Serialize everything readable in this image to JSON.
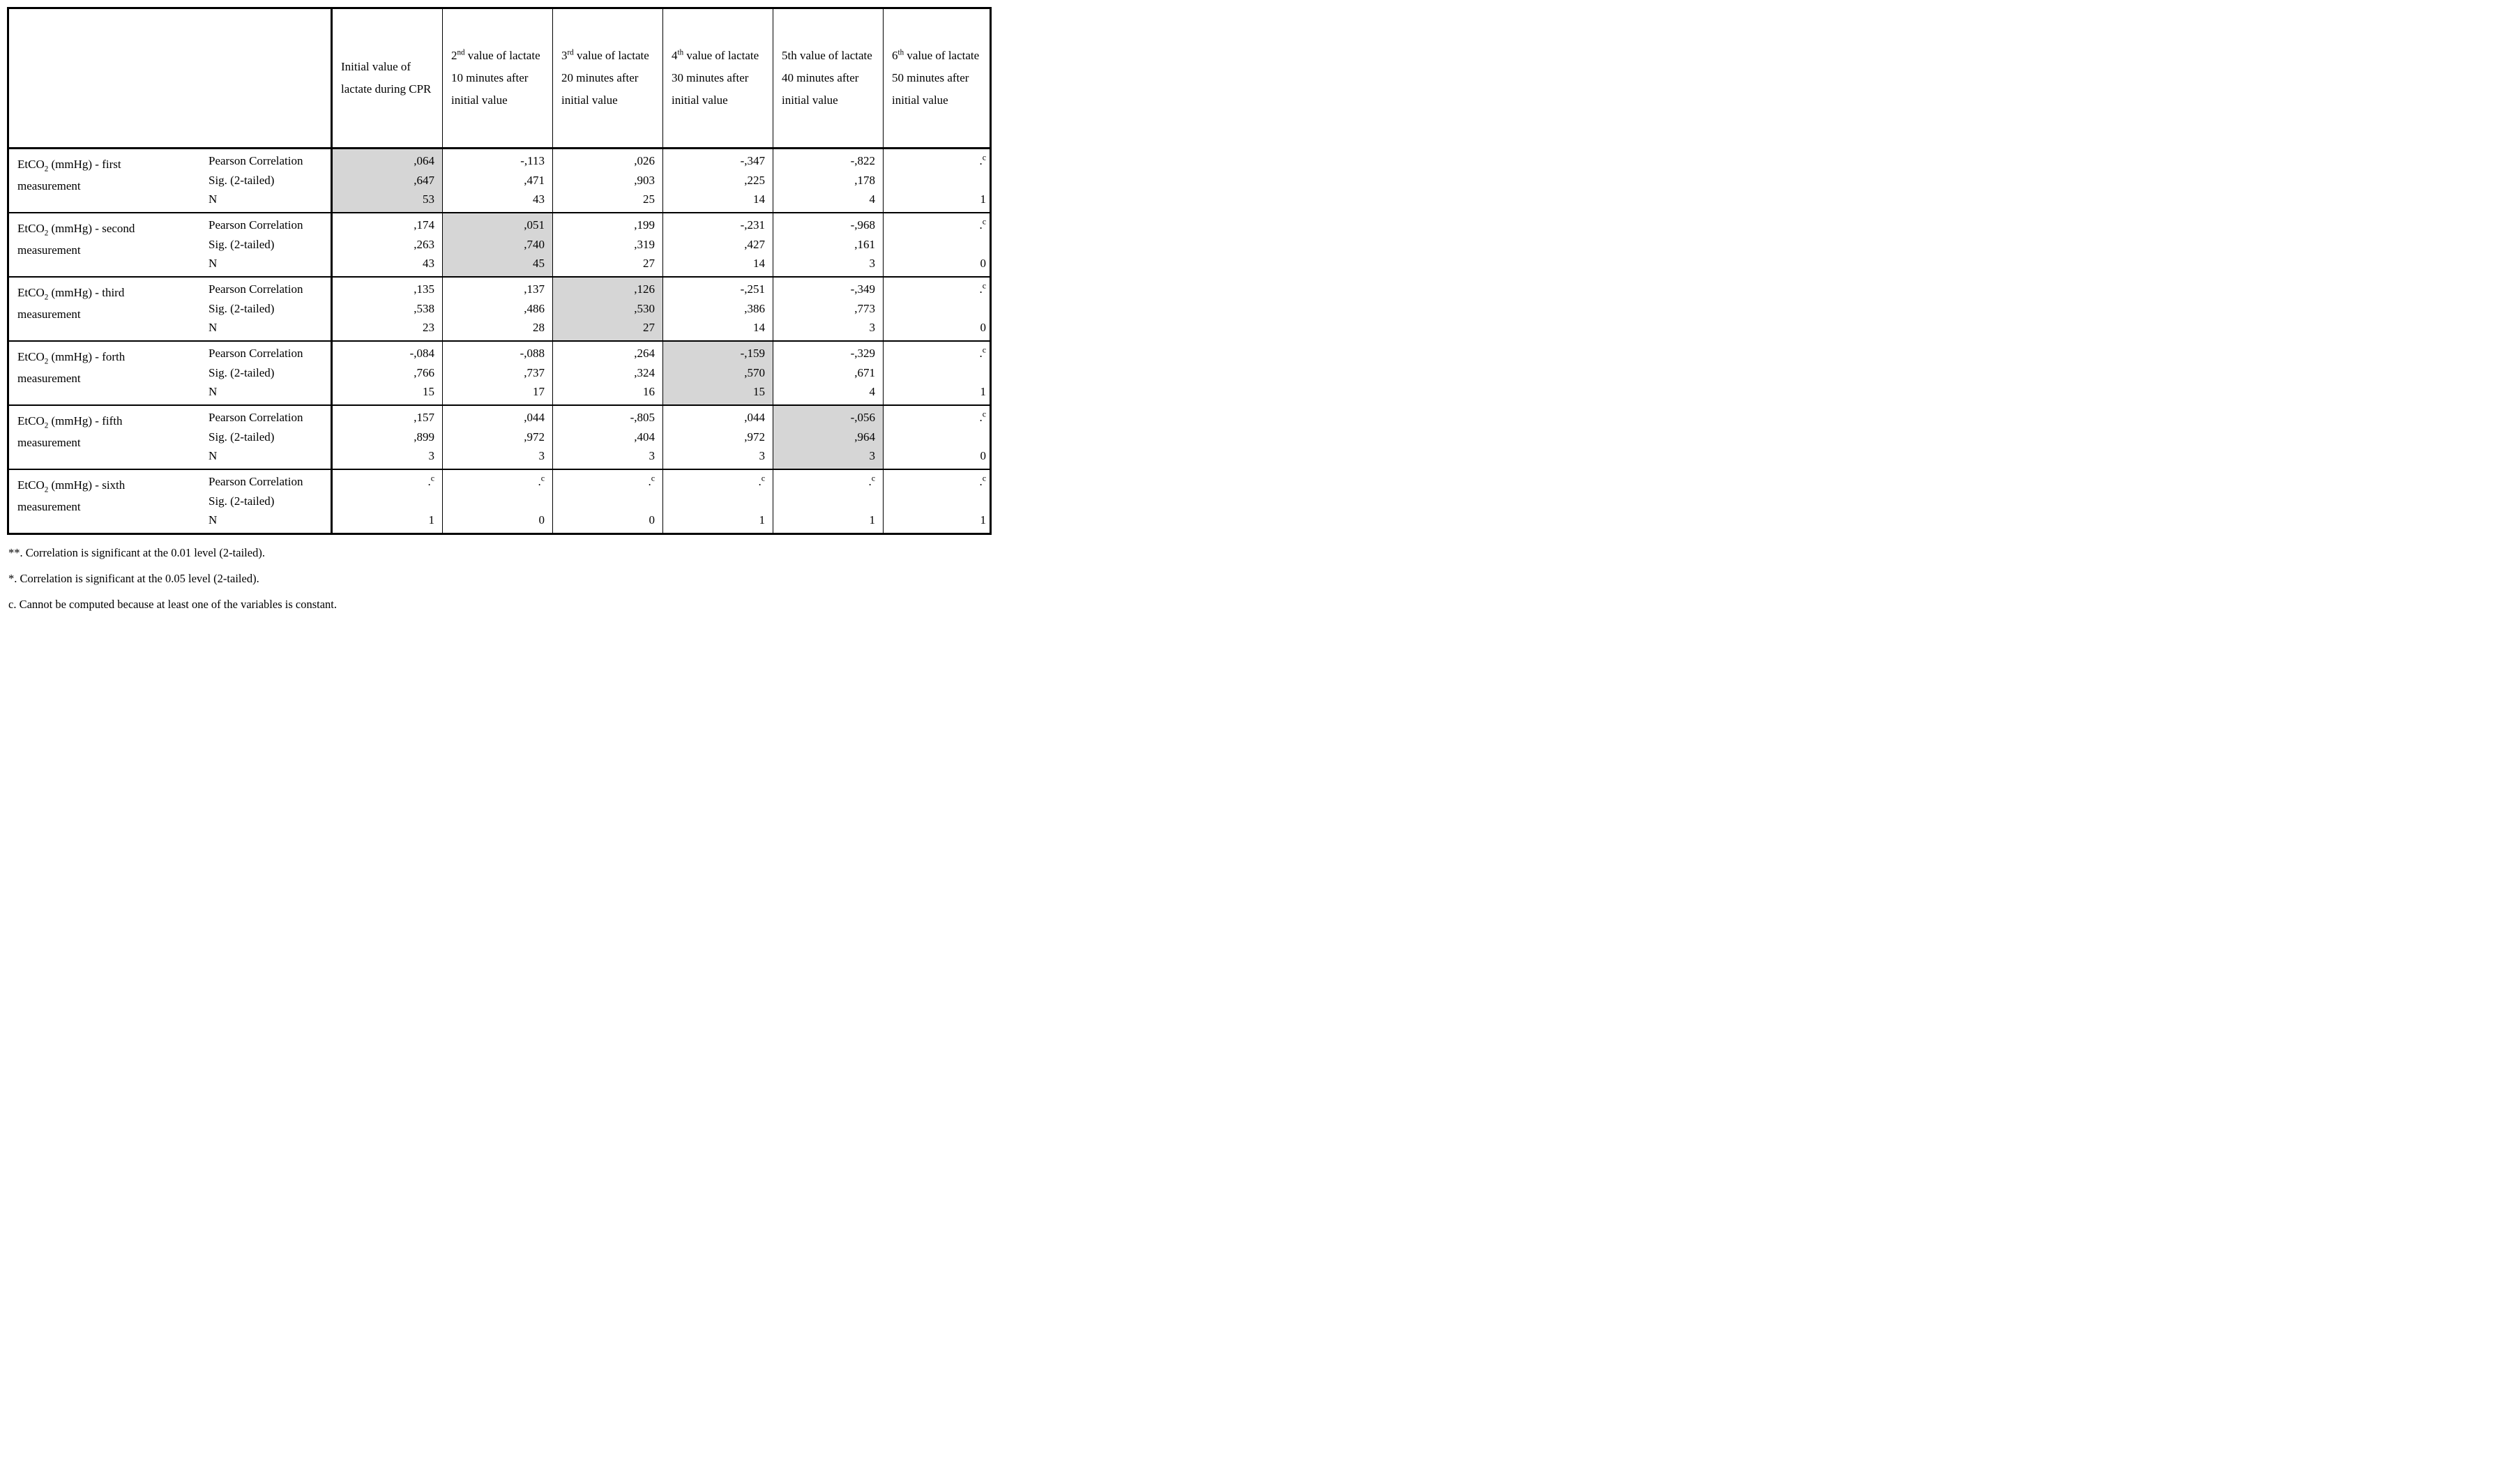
{
  "table": {
    "corner": "",
    "columns": [
      {
        "num": "Initial",
        "sup": "",
        "rest": "value of lactate during CPR"
      },
      {
        "num": "2",
        "sup": "nd",
        "rest": "value of lactate 10 minutes after initial value"
      },
      {
        "num": "3",
        "sup": "rd",
        "rest": "value of lactate 20 minutes after initial value"
      },
      {
        "num": "4",
        "sup": "th",
        "rest": "value of lactate 30 minutes after initial value"
      },
      {
        "num": "5th",
        "sup": "",
        "rest": "value of lactate 40 minutes after initial value"
      },
      {
        "num": "6",
        "sup": "th",
        "rest": "value of lactate 50 minutes after initial value"
      }
    ],
    "stat_labels": [
      "Pearson Correlation",
      "Sig. (2-tailed)",
      "N"
    ],
    "row_groups": [
      {
        "label": "EtCO₂ (mmHg) - first measurement",
        "shaded_col": 0,
        "pearson": [
          ",064",
          "-,113",
          ",026",
          "-,347",
          "-,822",
          ".c"
        ],
        "sig": [
          ",647",
          ",471",
          ",903",
          ",225",
          ",178",
          ""
        ],
        "n": [
          "53",
          "43",
          "25",
          "14",
          "4",
          "1"
        ]
      },
      {
        "label": "EtCO₂ (mmHg) - second measurement",
        "shaded_col": 1,
        "pearson": [
          ",174",
          ",051",
          ",199",
          "-,231",
          "-,968",
          ".c"
        ],
        "sig": [
          ",263",
          ",740",
          ",319",
          ",427",
          ",161",
          ""
        ],
        "n": [
          "43",
          "45",
          "27",
          "14",
          "3",
          "0"
        ]
      },
      {
        "label": "EtCO₂ (mmHg) - third measurement",
        "shaded_col": 2,
        "pearson": [
          ",135",
          ",137",
          ",126",
          "-,251",
          "-,349",
          ".c"
        ],
        "sig": [
          ",538",
          ",486",
          ",530",
          ",386",
          ",773",
          ""
        ],
        "n": [
          "23",
          "28",
          "27",
          "14",
          "3",
          "0"
        ]
      },
      {
        "label": "EtCO₂ (mmHg) - forth measurement",
        "shaded_col": 3,
        "pearson": [
          "-,084",
          "-,088",
          ",264",
          "-,159",
          "-,329",
          ".c"
        ],
        "sig": [
          ",766",
          ",737",
          ",324",
          ",570",
          ",671",
          ""
        ],
        "n": [
          "15",
          "17",
          "16",
          "15",
          "4",
          "1"
        ]
      },
      {
        "label": "EtCO₂ (mmHg) - fifth measurement",
        "shaded_col": 4,
        "pearson": [
          ",157",
          ",044",
          "-,805",
          ",044",
          "-,056",
          ".c"
        ],
        "sig": [
          ",899",
          ",972",
          ",404",
          ",972",
          ",964",
          ""
        ],
        "n": [
          "3",
          "3",
          "3",
          "3",
          "3",
          "0"
        ]
      },
      {
        "label": "EtCO₂ (mmHg) - sixth measurement",
        "shaded_col": -1,
        "pearson": [
          ".c",
          ".c",
          ".c",
          ".c",
          ".c",
          ".c"
        ],
        "sig": [
          "",
          "",
          "",
          "",
          "",
          ""
        ],
        "n": [
          "1",
          "0",
          "0",
          "1",
          "1",
          "1"
        ]
      }
    ],
    "shade_color": "#d6d6d6"
  },
  "footnotes": [
    "**. Correlation is significant at the 0.01 level (2-tailed).",
    "*. Correlation is significant at the 0.05 level (2-tailed).",
    "c. Cannot be computed because at least one of the variables is constant."
  ]
}
